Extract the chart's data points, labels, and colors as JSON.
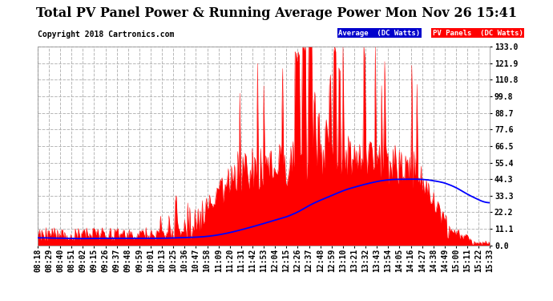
{
  "title": "Total PV Panel Power & Running Average Power Mon Nov 26 15:41",
  "copyright": "Copyright 2018 Cartronics.com",
  "legend_avg": "Average  (DC Watts)",
  "legend_pv": "PV Panels  (DC Watts)",
  "ylim": [
    0.0,
    133.0
  ],
  "ytick_vals": [
    0.0,
    11.1,
    22.2,
    33.3,
    44.3,
    55.4,
    66.5,
    77.6,
    88.7,
    99.8,
    110.8,
    121.9,
    133.0
  ],
  "ytick_labels": [
    "0.0",
    "11.1",
    "22.2",
    "33.3",
    "44.3",
    "55.4",
    "66.5",
    "77.6",
    "88.7",
    "99.8",
    "110.8",
    "121.9",
    "133.0"
  ],
  "xtick_labels": [
    "08:18",
    "08:29",
    "08:40",
    "08:51",
    "09:02",
    "09:15",
    "09:26",
    "09:37",
    "09:48",
    "09:59",
    "10:01",
    "10:13",
    "10:25",
    "10:36",
    "10:47",
    "10:58",
    "11:09",
    "11:20",
    "11:31",
    "11:42",
    "11:53",
    "12:04",
    "12:15",
    "12:26",
    "12:37",
    "12:48",
    "12:59",
    "13:10",
    "13:21",
    "13:32",
    "13:43",
    "13:54",
    "14:05",
    "14:16",
    "14:27",
    "14:38",
    "14:49",
    "15:00",
    "15:11",
    "15:22",
    "15:33"
  ],
  "bg_color": "#ffffff",
  "grid_color": "#b0b0b0",
  "pv_color": "#ff0000",
  "avg_color": "#0000ff",
  "title_fontsize": 11.5,
  "tick_fontsize": 7,
  "copyright_fontsize": 7,
  "n_points": 435
}
